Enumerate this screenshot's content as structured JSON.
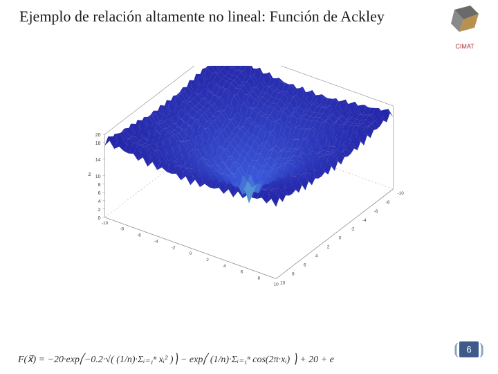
{
  "title": "Ejemplo de relación altamente no lineal: Función de Ackley",
  "title_fontsize": 22,
  "title_color": "#1a1a1a",
  "logo": {
    "text": "CIMAT",
    "text_color": "#b03030",
    "shape_color_a": "#6a6a6a",
    "shape_color_b": "#b89050"
  },
  "page_number": "6",
  "page_number_bg": "#3f5a8a",
  "chart": {
    "type": "surface3d",
    "x_range": [
      -10,
      10
    ],
    "y_range": [
      -10,
      10
    ],
    "z_range": [
      0,
      20
    ],
    "z_ticks": [
      0,
      2,
      4,
      6,
      8,
      10,
      14,
      18,
      20
    ],
    "x_ticks": [
      -10,
      -8,
      -6,
      -4,
      -2,
      0,
      2,
      4,
      6,
      8,
      10
    ],
    "y_ticks": [
      -10,
      -8,
      -6,
      -4,
      -2,
      0,
      2,
      4,
      6,
      8,
      10
    ],
    "z_label": "z",
    "colormap_low": "#6fdad5",
    "colormap_mid": "#3a56d8",
    "colormap_high": "#2322a5",
    "grid_color": "#cccccc",
    "box_color": "#888888",
    "background_color": "#ffffff",
    "grid_density": 36,
    "ackley_a": 20,
    "ackley_b": 0.2,
    "ackley_c": 6.2832
  },
  "formula": {
    "text": "F(x⃗) = −20·exp⎛−0.2·√( (1/n)·Σᵢ₌₁ⁿ xᵢ² )⎞ − exp⎛ (1/n)·Σᵢ₌₁ⁿ cos(2π·xᵢ) ⎞ + 20 + e",
    "fontsize": 14,
    "color": "#303030"
  }
}
